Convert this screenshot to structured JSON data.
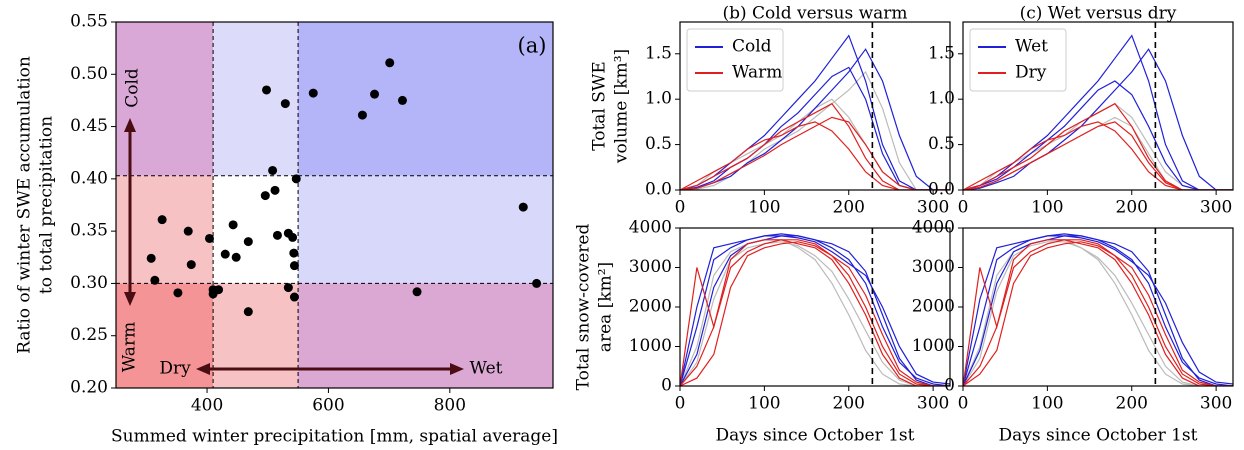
{
  "chart_data": [
    {
      "type": "scatter",
      "xlabel": "Summed winter precipitation [mm, spatial average]",
      "ylabel": [
        "Ratio of winter SWE accumulation",
        "to total precipitation"
      ],
      "annotations": {
        "panel": "(a)",
        "cold": "Cold",
        "warm": "Warm",
        "dry": "Dry",
        "wet": "Wet"
      },
      "xlim": [
        250,
        970
      ],
      "ylim": [
        0.2,
        0.55
      ],
      "xticks": [
        400,
        600,
        800
      ],
      "yticks": [
        {
          "value": 0.2,
          "label": "0.20"
        },
        0.25,
        {
          "value": 0.3,
          "label": "0.30"
        },
        0.35,
        {
          "value": 0.4,
          "label": "0.40"
        },
        0.45,
        {
          "value": 0.5,
          "label": "0.50"
        },
        0.55
      ],
      "x_splits": [
        410,
        550
      ],
      "y_splits": [
        0.3,
        0.403
      ],
      "region_colors": [
        [
          "#d9a8d6",
          "#dcdcfa",
          "#b4b4f8"
        ],
        [
          "#f7c2c4",
          "#ffffff",
          "#d8d8fa"
        ],
        [
          "#f59496",
          "#f7c2c4",
          "#dba8d4"
        ]
      ],
      "color": "#000000",
      "x": [
        308,
        314,
        326,
        352,
        369,
        374,
        404,
        410,
        410,
        419,
        430,
        443,
        448,
        468,
        468,
        498,
        496,
        508,
        512,
        516,
        529,
        534,
        534,
        541,
        543,
        544,
        544,
        547,
        575,
        656,
        676,
        701,
        722,
        746,
        921,
        943
      ],
      "values": [
        0.324,
        0.303,
        0.361,
        0.291,
        0.35,
        0.318,
        0.343,
        0.294,
        0.29,
        0.294,
        0.328,
        0.356,
        0.325,
        0.273,
        0.34,
        0.485,
        0.384,
        0.408,
        0.389,
        0.346,
        0.472,
        0.348,
        0.296,
        0.344,
        0.329,
        0.317,
        0.287,
        0.4,
        0.482,
        0.461,
        0.481,
        0.511,
        0.475,
        0.292,
        0.373,
        0.3
      ]
    },
    {
      "type": "line",
      "title": "(b) Cold versus warm",
      "ylabel": [
        "Total SWE",
        "volume [km³]"
      ],
      "xlim": [
        0,
        320
      ],
      "ylim": [
        0,
        1.85
      ],
      "xticks": [
        0,
        100,
        200,
        300
      ],
      "yticks": [
        {
          "value": 0,
          "label": "0.0"
        },
        0.5,
        {
          "value": 1,
          "label": "1.0"
        },
        1.5
      ],
      "vline": 228,
      "x": [
        0,
        20,
        40,
        60,
        80,
        100,
        120,
        140,
        160,
        180,
        200,
        220,
        240,
        260,
        280,
        300,
        320
      ],
      "series": [
        {
          "color": "#bbbbbb",
          "values": [
            [
              0,
              0.05,
              0.2,
              0.3,
              0.4,
              0.5,
              0.6,
              0.75,
              0.9,
              1.0,
              0.8,
              0.5,
              0.2,
              0.05,
              0,
              0,
              0
            ],
            [
              0,
              0.01,
              0.05,
              0.15,
              0.3,
              0.45,
              0.55,
              0.65,
              0.8,
              0.95,
              1.1,
              1.3,
              0.9,
              0.3,
              0,
              0,
              0
            ]
          ]
        },
        {
          "name": "Cold",
          "color": "#2020d8",
          "values": [
            [
              0,
              0.05,
              0.15,
              0.3,
              0.45,
              0.6,
              0.8,
              1.0,
              1.2,
              1.45,
              1.7,
              1.2,
              0.5,
              0.1,
              0,
              0,
              0
            ],
            [
              0,
              0.03,
              0.1,
              0.25,
              0.35,
              0.5,
              0.7,
              0.85,
              1.05,
              1.25,
              1.35,
              1.0,
              0.4,
              0.05,
              0,
              0,
              0
            ],
            [
              0,
              0.02,
              0.08,
              0.15,
              0.3,
              0.4,
              0.55,
              0.7,
              0.9,
              1.1,
              1.3,
              1.55,
              1.2,
              0.6,
              0.15,
              0,
              0
            ]
          ]
        },
        {
          "name": "Warm",
          "color": "#e02020",
          "values": [
            [
              0,
              0.05,
              0.15,
              0.25,
              0.35,
              0.5,
              0.65,
              0.75,
              0.85,
              0.95,
              0.7,
              0.35,
              0.1,
              0,
              0,
              0,
              0
            ],
            [
              0,
              0.1,
              0.2,
              0.3,
              0.45,
              0.55,
              0.6,
              0.7,
              0.75,
              0.65,
              0.45,
              0.2,
              0.05,
              0,
              0,
              0,
              0
            ],
            [
              0,
              0.02,
              0.08,
              0.18,
              0.28,
              0.38,
              0.5,
              0.6,
              0.7,
              0.8,
              0.75,
              0.5,
              0.2,
              0.05,
              0,
              0,
              0
            ]
          ]
        }
      ]
    },
    {
      "type": "line",
      "xlabel": "Days since October 1st",
      "ylabel": [
        "Total snow-covered",
        "area [km²]"
      ],
      "xlim": [
        0,
        320
      ],
      "ylim": [
        0,
        4000
      ],
      "xticks": [
        0,
        100,
        200,
        300
      ],
      "yticks": [
        0,
        1000,
        2000,
        3000,
        4000
      ],
      "vline": 228,
      "x": [
        0,
        20,
        40,
        60,
        80,
        100,
        120,
        140,
        160,
        180,
        200,
        220,
        240,
        260,
        280,
        300,
        320
      ],
      "series": [
        {
          "color": "#bbbbbb",
          "values": [
            [
              0,
              1000,
              2800,
              3400,
              3600,
              3700,
              3700,
              3500,
              3200,
              2600,
              1800,
              900,
              300,
              50,
              0,
              0,
              0
            ],
            [
              0,
              600,
              2200,
              3200,
              3500,
              3600,
              3650,
              3550,
              3300,
              2900,
              2200,
              1400,
              600,
              150,
              0,
              0,
              0
            ]
          ]
        },
        {
          "color": "#2020d8",
          "values": [
            [
              0,
              1500,
              3200,
              3500,
              3700,
              3800,
              3850,
              3800,
              3700,
              3500,
              3200,
              2600,
              1500,
              600,
              200,
              50,
              0
            ],
            [
              0,
              800,
              2500,
              3300,
              3600,
              3700,
              3800,
              3750,
              3650,
              3400,
              3100,
              2800,
              2000,
              1000,
              300,
              100,
              50
            ],
            [
              0,
              2000,
              3500,
              3600,
              3700,
              3800,
              3800,
              3800,
              3700,
              3600,
              3400,
              2900,
              1800,
              700,
              150,
              0,
              0
            ]
          ]
        },
        {
          "color": "#e02020",
          "values": [
            [
              0,
              500,
              1500,
              3000,
              3400,
              3600,
              3700,
              3700,
              3600,
              3300,
              2800,
              2000,
              1000,
              300,
              50,
              0,
              0
            ],
            [
              0,
              3000,
              1500,
              3200,
              3600,
              3700,
              3700,
              3600,
              3500,
              3200,
              2600,
              1800,
              800,
              200,
              0,
              0,
              0
            ],
            [
              0,
              200,
              800,
              2500,
              3300,
              3500,
              3600,
              3650,
              3550,
              3300,
              3000,
              2300,
              1300,
              400,
              100,
              0,
              0
            ]
          ]
        }
      ]
    },
    {
      "type": "line",
      "title": "(c) Wet versus dry",
      "xlim": [
        0,
        320
      ],
      "ylim": [
        0,
        1.85
      ],
      "xticks": [
        0,
        100,
        200,
        300
      ],
      "yticks": [
        {
          "value": 0,
          "label": "0.0"
        },
        0.5,
        {
          "value": 1,
          "label": "1.0"
        },
        1.5
      ],
      "vline": 228,
      "x": [
        0,
        20,
        40,
        60,
        80,
        100,
        120,
        140,
        160,
        180,
        200,
        220,
        240,
        260,
        280,
        300,
        320
      ],
      "series": [
        {
          "color": "#bbbbbb",
          "values": [
            [
              0,
              0.05,
              0.2,
              0.3,
              0.4,
              0.5,
              0.6,
              0.75,
              0.85,
              0.95,
              0.8,
              0.5,
              0.2,
              0.05,
              0,
              0,
              0
            ],
            [
              0,
              0.02,
              0.1,
              0.2,
              0.3,
              0.4,
              0.5,
              0.6,
              0.7,
              0.8,
              0.7,
              0.4,
              0.1,
              0,
              0,
              0,
              0
            ]
          ]
        },
        {
          "name": "Wet",
          "color": "#2020d8",
          "values": [
            [
              0,
              0.05,
              0.15,
              0.3,
              0.45,
              0.6,
              0.8,
              1.0,
              1.2,
              1.45,
              1.7,
              1.2,
              0.5,
              0.1,
              0,
              0,
              0
            ],
            [
              0,
              0.02,
              0.08,
              0.15,
              0.3,
              0.4,
              0.55,
              0.7,
              0.9,
              1.1,
              1.3,
              1.55,
              1.2,
              0.6,
              0.15,
              0,
              0
            ],
            [
              0,
              0.05,
              0.12,
              0.25,
              0.4,
              0.55,
              0.7,
              0.9,
              1.1,
              1.2,
              1.05,
              0.7,
              0.3,
              0.05,
              0,
              0,
              0
            ]
          ]
        },
        {
          "name": "Dry",
          "color": "#e02020",
          "values": [
            [
              0,
              0.05,
              0.15,
              0.25,
              0.35,
              0.5,
              0.65,
              0.75,
              0.85,
              0.95,
              0.7,
              0.35,
              0.1,
              0,
              0,
              0,
              0
            ],
            [
              0,
              0.1,
              0.2,
              0.3,
              0.45,
              0.55,
              0.6,
              0.7,
              0.75,
              0.65,
              0.45,
              0.2,
              0.05,
              0,
              0,
              0,
              0
            ],
            [
              0,
              0.03,
              0.1,
              0.2,
              0.3,
              0.4,
              0.5,
              0.6,
              0.7,
              0.75,
              0.6,
              0.3,
              0.08,
              0,
              0,
              0,
              0
            ]
          ]
        }
      ]
    },
    {
      "type": "line",
      "xlabel": "Days since October 1st",
      "xlim": [
        0,
        320
      ],
      "ylim": [
        0,
        4000
      ],
      "xticks": [
        0,
        100,
        200,
        300
      ],
      "yticks": [
        0,
        1000,
        2000,
        3000,
        4000
      ],
      "vline": 228,
      "x": [
        0,
        20,
        40,
        60,
        80,
        100,
        120,
        140,
        160,
        180,
        200,
        220,
        240,
        260,
        280,
        300,
        320
      ],
      "series": [
        {
          "color": "#bbbbbb",
          "values": [
            [
              0,
              1000,
              2800,
              3400,
              3600,
              3700,
              3700,
              3500,
              3200,
              2600,
              1800,
              900,
              300,
              50,
              0,
              0,
              0
            ],
            [
              0,
              700,
              2400,
              3300,
              3550,
              3650,
              3650,
              3500,
              3250,
              2800,
              2100,
              1300,
              500,
              100,
              0,
              0,
              0
            ]
          ]
        },
        {
          "color": "#2020d8",
          "values": [
            [
              0,
              1500,
              3200,
              3500,
              3700,
              3800,
              3850,
              3800,
              3700,
              3500,
              3200,
              2600,
              1500,
              600,
              200,
              50,
              0
            ],
            [
              0,
              900,
              2600,
              3400,
              3600,
              3700,
              3800,
              3750,
              3650,
              3450,
              3150,
              2800,
              2100,
              1100,
              350,
              100,
              50
            ],
            [
              0,
              2200,
              3500,
              3600,
              3700,
              3800,
              3800,
              3800,
              3700,
              3600,
              3400,
              2900,
              1800,
              700,
              150,
              0,
              0
            ]
          ]
        },
        {
          "color": "#e02020",
          "values": [
            [
              0,
              500,
              1500,
              3000,
              3400,
              3600,
              3700,
              3700,
              3600,
              3300,
              2800,
              2000,
              1000,
              300,
              50,
              0,
              0
            ],
            [
              0,
              3000,
              1500,
              3200,
              3600,
              3700,
              3700,
              3600,
              3500,
              3200,
              2600,
              1800,
              800,
              200,
              0,
              0,
              0
            ],
            [
              0,
              300,
              900,
              2600,
              3300,
              3500,
              3600,
              3650,
              3550,
              3300,
              3000,
              2300,
              1300,
              400,
              100,
              0,
              0
            ]
          ]
        }
      ]
    }
  ]
}
